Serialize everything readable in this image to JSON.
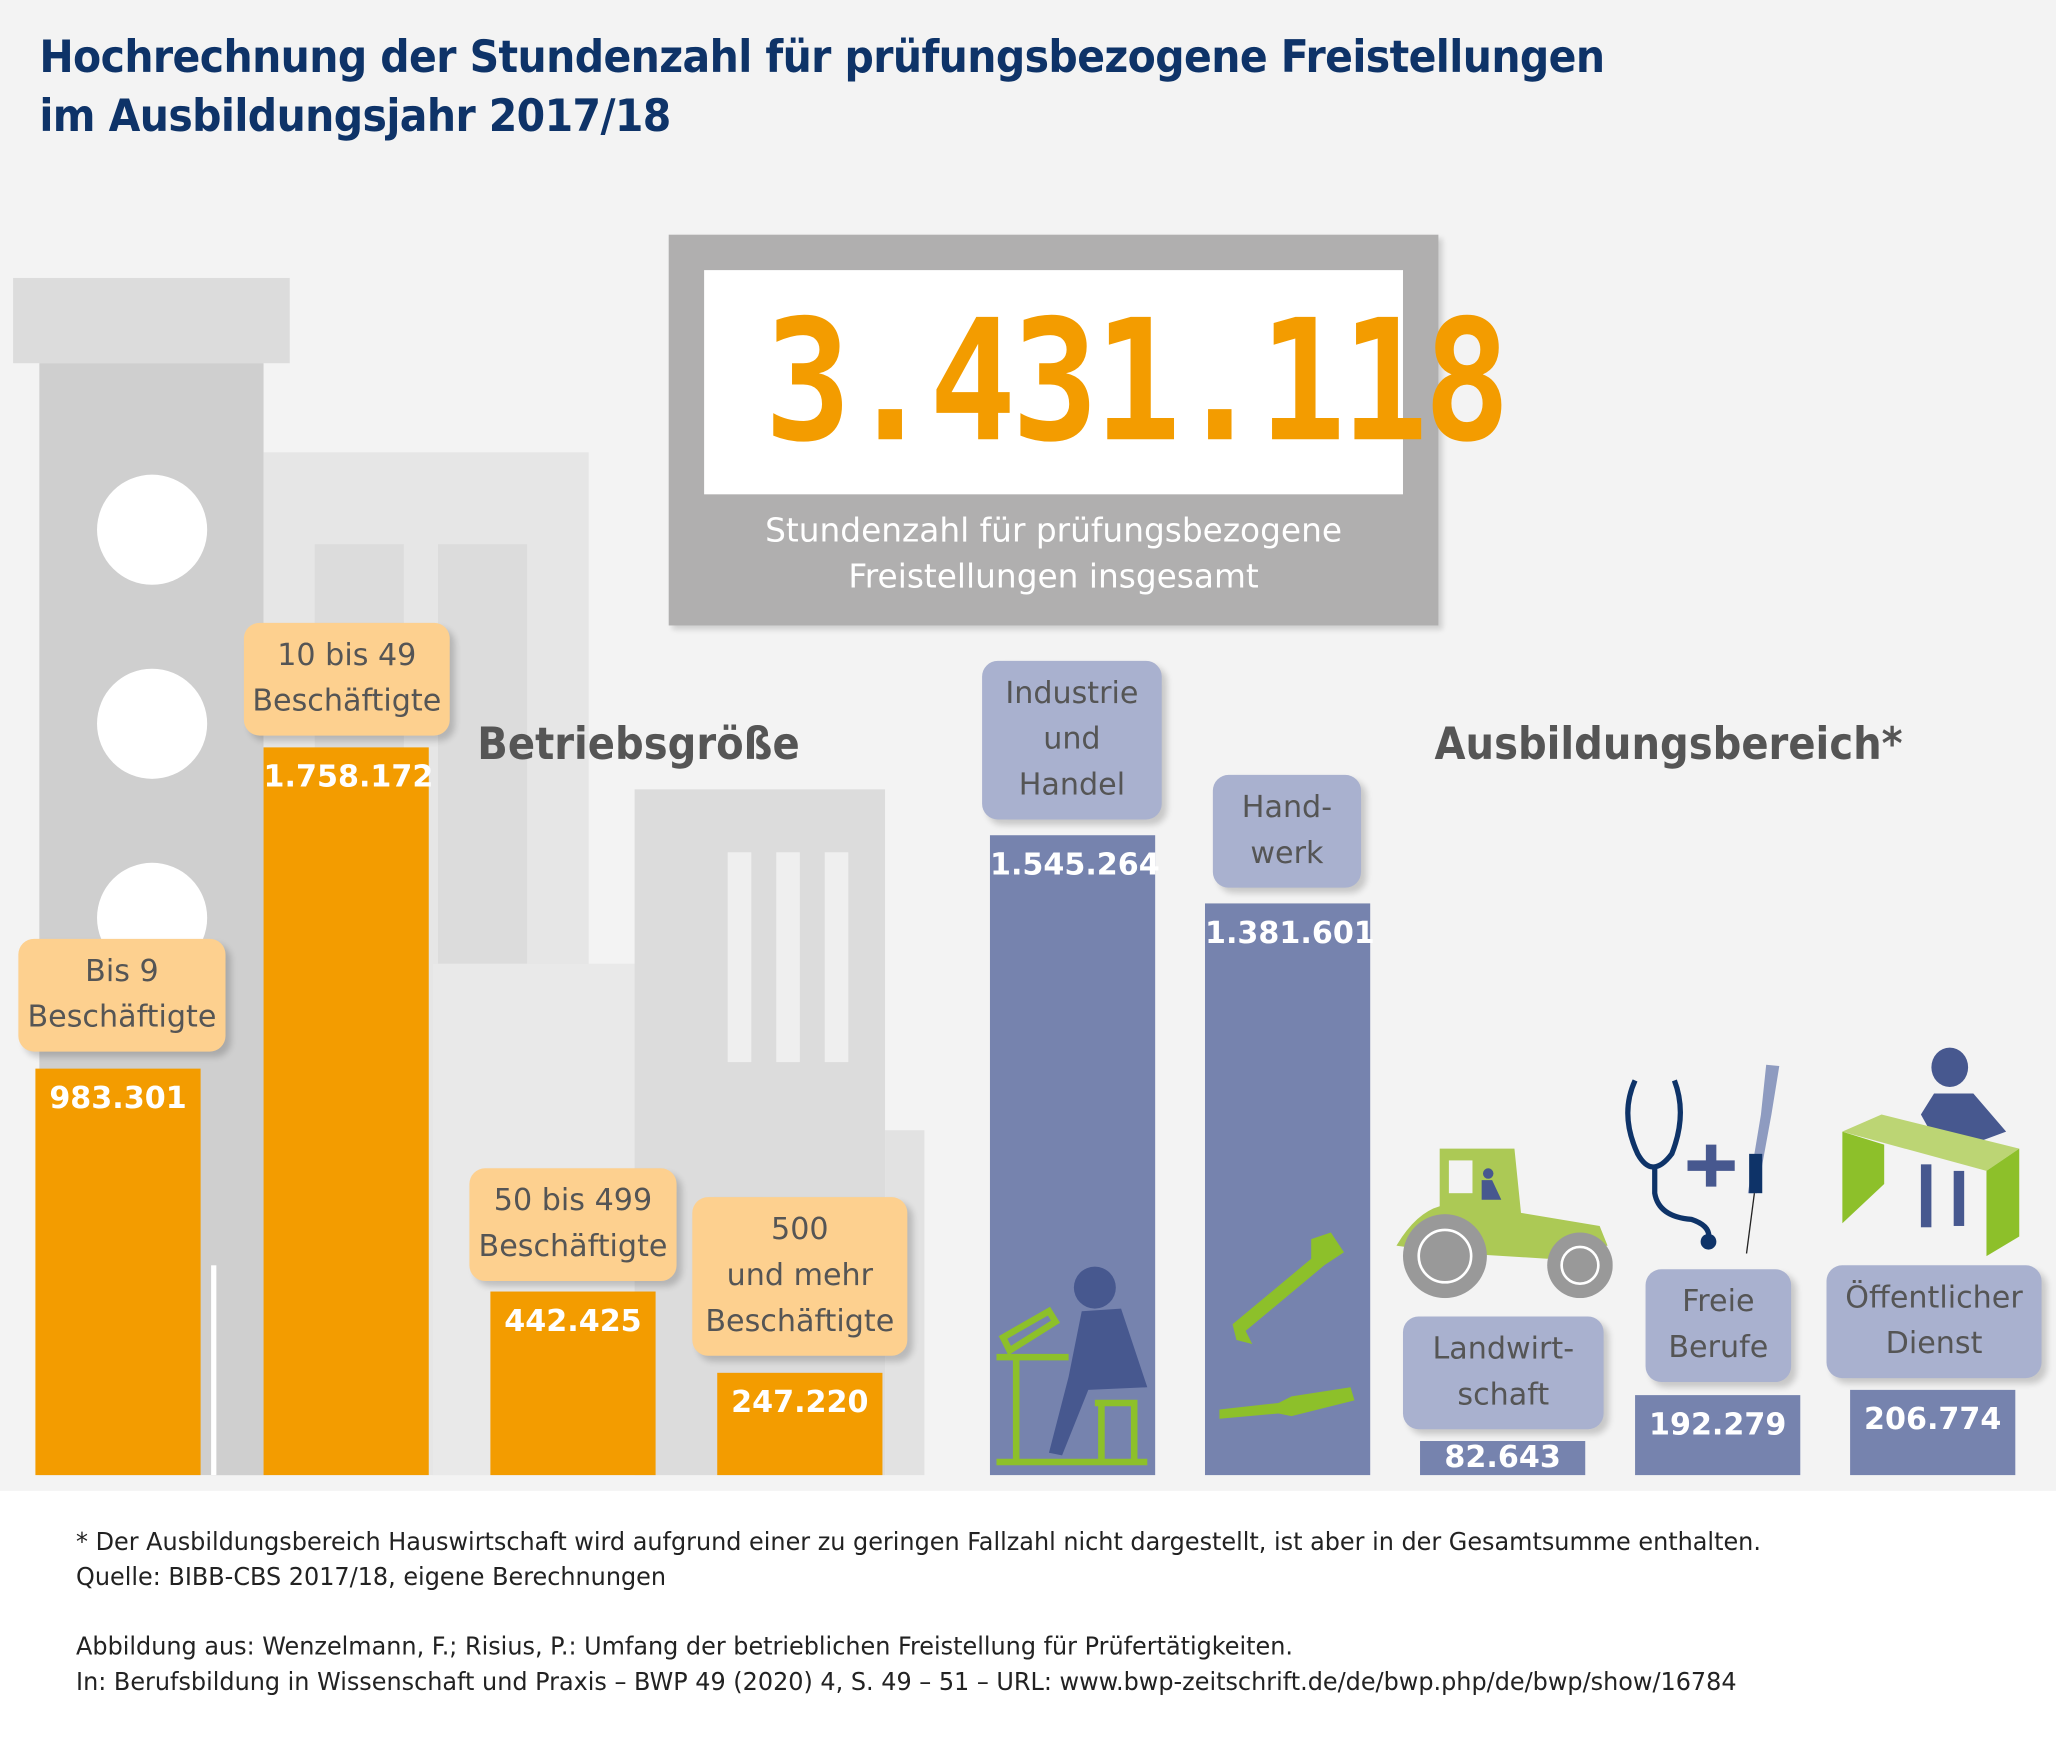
{
  "title_line1": "Hochrechnung der Stundenzahl für prüfungsbezogene Freistellungen",
  "title_line2": "im Ausbildungsjahr 2017/18",
  "total": {
    "value": "3.431.118",
    "caption_line1": "Stundenzahl für prüfungsbezogene",
    "caption_line2": "Freistellungen insgesamt"
  },
  "chart_data": {
    "type": "bar",
    "groups": [
      {
        "title": "Betriebsgröße",
        "color": "#f39c00",
        "categories": [
          "Bis 9 Beschäftigte",
          "10 bis 49 Beschäftigte",
          "50 bis 499 Beschäftigte",
          "500 und mehr Beschäftigte"
        ],
        "label_lines": [
          [
            "Bis 9",
            "Beschäftigte"
          ],
          [
            "10 bis 49",
            "Beschäftigte"
          ],
          [
            "50 bis 499",
            "Beschäftigte"
          ],
          [
            "500",
            "und mehr",
            "Beschäftigte"
          ]
        ],
        "values": [
          983301,
          1758172,
          442425,
          247220
        ],
        "value_labels": [
          "983.301",
          "1.758.172",
          "442.425",
          "247.220"
        ]
      },
      {
        "title": "Ausbildungsbereich*",
        "color": "#7683ae",
        "categories": [
          "Industrie und Handel",
          "Handwerk",
          "Landwirtschaft",
          "Freie Berufe",
          "Öffentlicher Dienst"
        ],
        "label_lines": [
          [
            "Industrie",
            "und",
            "Handel"
          ],
          [
            "Hand-",
            "werk"
          ],
          [
            "Landwirt-",
            "schaft"
          ],
          [
            "Freie",
            "Berufe"
          ],
          [
            "Öffentlicher",
            "Dienst"
          ]
        ],
        "values": [
          1545264,
          1381601,
          82643,
          192279,
          206774
        ],
        "value_labels": [
          "1.545.264",
          "1.381.601",
          "82.643",
          "192.279",
          "206.774"
        ]
      }
    ]
  },
  "footnotes": {
    "note": "* Der Ausbildungsbereich Hauswirtschaft wird aufgrund einer zu geringen Fallzahl nicht dargestellt, ist aber in der Gesamtsumme enthalten.",
    "source": "Quelle: BIBB-CBS 2017/18, eigene Berechnungen",
    "citation1": "Abbildung aus: Wenzelmann, F.; Risius, P.: Umfang der betrieblichen Freistellung für Prüfertätigkeiten.",
    "citation2": "In: Berufsbildung in Wissenschaft und Praxis – BWP 49 (2020) 4, S. 49 – 51 – URL: www.bwp-zeitschrift.de/de/bwp.php/de/bwp/show/16784"
  },
  "icons": [
    "drafting-worker-icon",
    "wrench-icon",
    "screwdriver-icon",
    "tractor-icon",
    "stethoscope-icon",
    "syringe-icon",
    "clerk-desk-icon"
  ]
}
